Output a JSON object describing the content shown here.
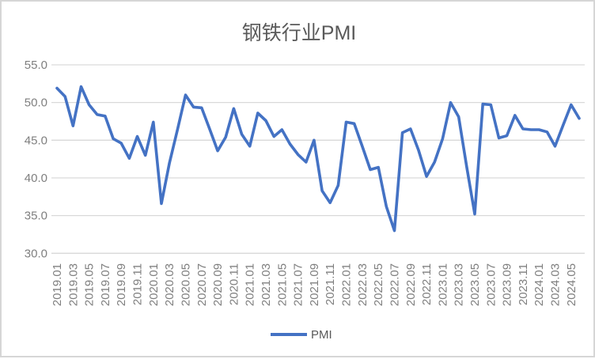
{
  "chart_data": {
    "type": "line",
    "title": "钢铁行业PMI",
    "legend": {
      "label": "PMI",
      "position": "bottom"
    },
    "ylim": [
      30,
      55
    ],
    "y_tick_labels": [
      "55.0",
      "50.0",
      "45.0",
      "40.0",
      "35.0",
      "30.0"
    ],
    "y_tick_values": [
      55,
      50,
      45,
      40,
      35,
      30
    ],
    "x_tick_labels": [
      "2019.01",
      "2019.03",
      "2019.05",
      "2019.07",
      "2019.09",
      "2019.11",
      "2020.01",
      "2020.03",
      "2020.05",
      "2020.07",
      "2020.09",
      "2020.11",
      "2021.01",
      "2021.03",
      "2021.05",
      "2021.07",
      "2021.09",
      "2021.11",
      "2022.01",
      "2022.03",
      "2022.05",
      "2022.07",
      "2022.09",
      "2022.11",
      "2023.01",
      "2023.03",
      "2023.05",
      "2023.07",
      "2023.09",
      "2023.11",
      "2024.01",
      "2024.03",
      "2024.05"
    ],
    "x": [
      "2019.01",
      "2019.02",
      "2019.03",
      "2019.04",
      "2019.05",
      "2019.06",
      "2019.07",
      "2019.08",
      "2019.09",
      "2019.10",
      "2019.11",
      "2019.12",
      "2020.01",
      "2020.02",
      "2020.03",
      "2020.04",
      "2020.05",
      "2020.06",
      "2020.07",
      "2020.08",
      "2020.09",
      "2020.10",
      "2020.11",
      "2020.12",
      "2021.01",
      "2021.02",
      "2021.03",
      "2021.04",
      "2021.05",
      "2021.06",
      "2021.07",
      "2021.08",
      "2021.09",
      "2021.10",
      "2021.11",
      "2021.12",
      "2022.01",
      "2022.02",
      "2022.03",
      "2022.04",
      "2022.05",
      "2022.06",
      "2022.07",
      "2022.08",
      "2022.09",
      "2022.10",
      "2022.11",
      "2022.12",
      "2023.01",
      "2023.02",
      "2023.03",
      "2023.04",
      "2023.05",
      "2023.06",
      "2023.07",
      "2023.08",
      "2023.09",
      "2023.10",
      "2023.11",
      "2023.12",
      "2024.01",
      "2024.02",
      "2024.03",
      "2024.04",
      "2024.05",
      "2024.06"
    ],
    "series": [
      {
        "name": "PMI",
        "values": [
          51.9,
          50.8,
          46.9,
          52.1,
          49.7,
          48.4,
          48.2,
          45.2,
          44.6,
          42.6,
          45.5,
          43.0,
          47.4,
          36.6,
          42.0,
          46.4,
          51.0,
          49.4,
          49.3,
          46.5,
          43.6,
          45.4,
          49.2,
          45.8,
          44.2,
          48.6,
          47.6,
          45.5,
          46.4,
          44.5,
          43.1,
          42.1,
          45.0,
          38.3,
          36.7,
          39.0,
          47.4,
          47.2,
          44.2,
          41.1,
          41.4,
          36.2,
          33.0,
          46.0,
          46.5,
          43.7,
          40.2,
          42.1,
          45.2,
          50.0,
          48.1,
          41.5,
          35.2,
          49.8,
          49.7,
          45.3,
          45.6,
          48.3,
          46.5,
          46.4,
          46.4,
          46.1,
          44.2,
          47.0,
          49.7,
          47.9
        ]
      }
    ],
    "grid": "horizontal"
  },
  "colors": {
    "line": "#4472C4",
    "gridline": "#D9D9D9",
    "axis_text": "#7F7F7F",
    "title_text": "#595959",
    "frame_border": "#D6D6D6",
    "background": "#FFFFFF"
  }
}
